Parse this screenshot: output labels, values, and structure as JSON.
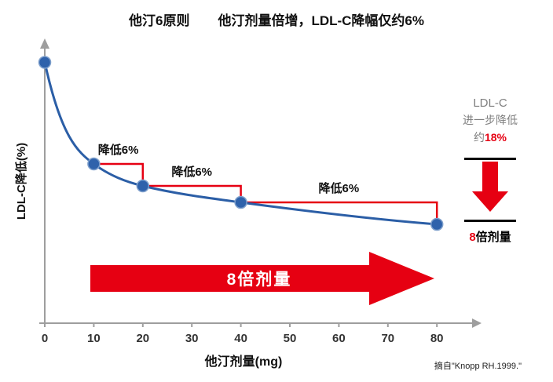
{
  "title": {
    "part1": "他汀6原则",
    "part2": "他汀剂量倍增，LDL-C降幅仅约6%"
  },
  "chart_data": {
    "type": "line",
    "xlabel": "他汀剂量(mg)",
    "ylabel": "LDL-C降低(%)",
    "x_ticks": [
      0,
      10,
      20,
      30,
      40,
      50,
      60,
      70,
      80
    ],
    "y_tick_labels": [],
    "x_range": [
      0,
      85
    ],
    "points": {
      "x": [
        0,
        10,
        20,
        40,
        80
      ],
      "y_relative": [
        0.95,
        0.58,
        0.5,
        0.44,
        0.36
      ]
    },
    "annotations": [
      {
        "label": "降低6%",
        "from_x": 10,
        "to_x": 20
      },
      {
        "label": "降低6%",
        "from_x": 20,
        "to_x": 40
      },
      {
        "label": "降低6%",
        "from_x": 40,
        "to_x": 80
      }
    ],
    "grid": "off",
    "legend": "none"
  },
  "big_arrow": {
    "label": "8倍剂量"
  },
  "side_panel": {
    "line1": "LDL-C",
    "line2": "进一步降低",
    "line3_prefix": "约",
    "line3_value": "18%",
    "bottom_prefix": "8",
    "bottom_rest": "倍剂量"
  },
  "source": "摘自\"Knopp RH.1999.\"",
  "colors": {
    "curve": "#2b5ea6",
    "dot": "#2f62ab",
    "dot_edge": "#7fa0cc",
    "red": "#e60012",
    "axis": "#9e9e9e",
    "tick_text": "#333333",
    "gray_text": "#7f7f7f"
  }
}
